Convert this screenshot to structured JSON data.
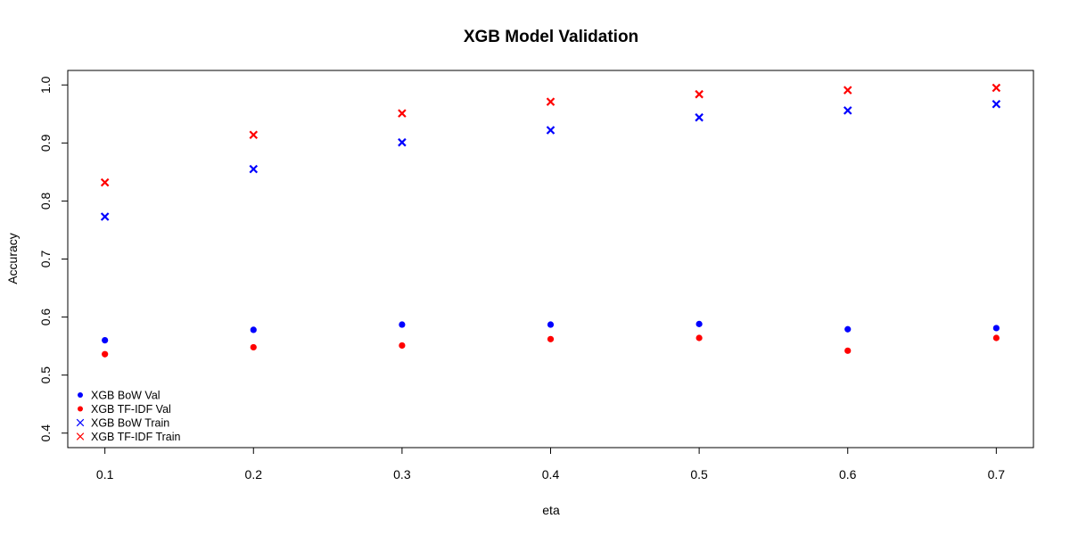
{
  "chart_data": {
    "type": "scatter",
    "title": "XGB Model Validation",
    "xlabel": "eta",
    "ylabel": "Accuracy",
    "x": [
      0.1,
      0.2,
      0.3,
      0.4,
      0.5,
      0.6,
      0.7
    ],
    "xlim": [
      0.075,
      0.725
    ],
    "ylim": [
      0.375,
      1.025
    ],
    "xticks": [
      "0.1",
      "0.2",
      "0.3",
      "0.4",
      "0.5",
      "0.6",
      "0.7"
    ],
    "yticks": [
      "0.4",
      "0.5",
      "0.6",
      "0.7",
      "0.8",
      "0.9",
      "1.0"
    ],
    "grid": false,
    "legend_position": "bottom-left",
    "series": [
      {
        "name": "XGB BoW Val",
        "color": "#0000FF",
        "marker": "filled-circle",
        "values": [
          0.56,
          0.578,
          0.587,
          0.587,
          0.588,
          0.579,
          0.581
        ]
      },
      {
        "name": "XGB TF-IDF Val",
        "color": "#FF0000",
        "marker": "filled-circle",
        "values": [
          0.536,
          0.548,
          0.551,
          0.562,
          0.564,
          0.542,
          0.564
        ]
      },
      {
        "name": "XGB BoW Train",
        "color": "#0000FF",
        "marker": "cross",
        "values": [
          0.773,
          0.855,
          0.901,
          0.922,
          0.944,
          0.956,
          0.967
        ]
      },
      {
        "name": "XGB TF-IDF Train",
        "color": "#FF0000",
        "marker": "cross",
        "values": [
          0.832,
          0.914,
          0.951,
          0.971,
          0.984,
          0.991,
          0.995
        ]
      }
    ]
  }
}
